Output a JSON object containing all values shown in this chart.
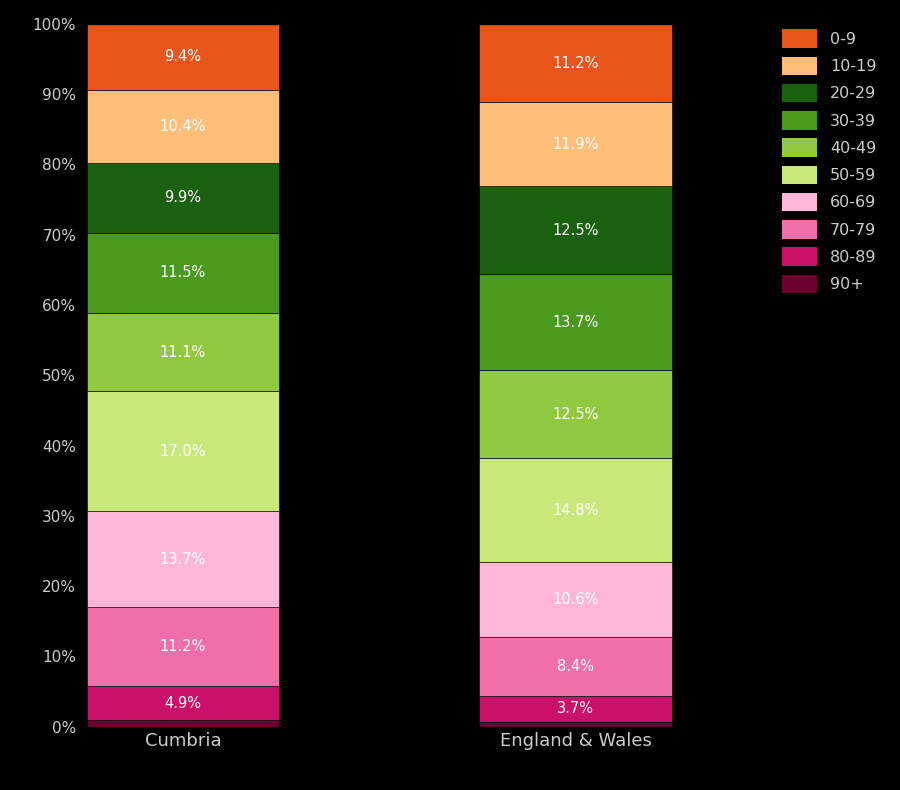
{
  "categories": [
    "Cumbria",
    "England & Wales"
  ],
  "cumbria_values": [
    0.9,
    4.9,
    11.2,
    13.7,
    17.0,
    11.1,
    11.5,
    9.9,
    10.4,
    9.4
  ],
  "ew_values": [
    0.7,
    3.7,
    8.4,
    10.6,
    14.8,
    12.5,
    13.7,
    12.5,
    11.9,
    11.2
  ],
  "colors_bottom_to_top": [
    "#6b0030",
    "#c9116a",
    "#f06eaa",
    "#ffb6d9",
    "#c8e87a",
    "#90c840",
    "#4a9a20",
    "#1a6010",
    "#ffbe7a",
    "#e8561e"
  ],
  "labels_cumbria": [
    null,
    "4.9%",
    "11.2%",
    "13.7%",
    "17.0%",
    "11.1%",
    "11.5%",
    "9.9%",
    "10.4%",
    "9.4%"
  ],
  "labels_ew": [
    null,
    "3.7%",
    "8.4%",
    "10.6%",
    "14.8%",
    "12.5%",
    "13.7%",
    "12.5%",
    "11.9%",
    "11.2%"
  ],
  "legend_labels": [
    "0-9",
    "10-19",
    "20-29",
    "30-39",
    "40-49",
    "50-59",
    "60-69",
    "70-79",
    "80-89",
    "90+"
  ],
  "legend_colors": [
    "#e8561e",
    "#ffbe7a",
    "#1a6010",
    "#4a9a20",
    "#90c840",
    "#c8e87a",
    "#ffb6d9",
    "#f06eaa",
    "#c9116a",
    "#6b0030"
  ],
  "background_color": "#000000",
  "text_color": "#cccccc",
  "figsize": [
    9.0,
    7.9
  ]
}
